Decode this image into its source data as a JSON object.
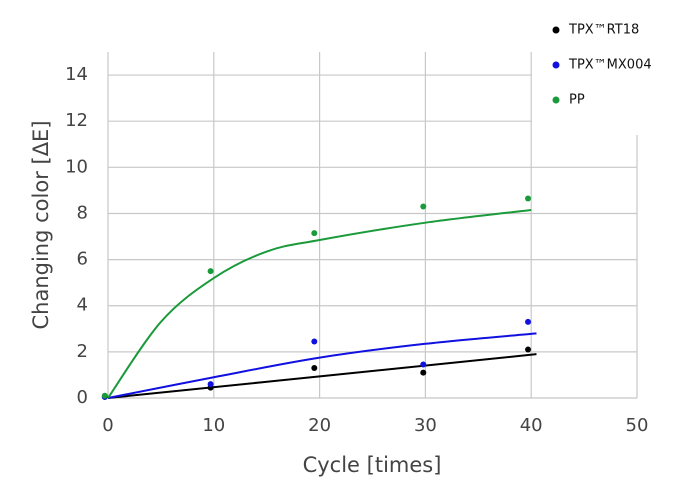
{
  "chart_data": {
    "type": "scatter",
    "x_label": "Cycle [times]",
    "y_label": "Changing color [ΔE]",
    "xlim": [
      0,
      50
    ],
    "xticks": [
      0,
      10,
      20,
      30,
      40,
      50
    ],
    "ylim": [
      0,
      15
    ],
    "yticks": [
      0,
      2,
      4,
      6,
      8,
      10,
      12,
      14
    ],
    "grid": true,
    "legend": "upper right",
    "series": [
      {
        "name": "TPX™RT18",
        "color": "#000000",
        "x": [
          -0.3,
          9.7,
          19.5,
          29.8,
          39.7
        ],
        "values": [
          0.05,
          0.45,
          1.3,
          1.1,
          2.1
        ],
        "trend_x": [
          0,
          40.5
        ],
        "trend_values": [
          0,
          1.9
        ]
      },
      {
        "name": "TPX™MX004",
        "color": "#1010e0",
        "x": [
          -0.3,
          9.7,
          19.5,
          29.8,
          39.7
        ],
        "values": [
          0.05,
          0.6,
          2.45,
          1.45,
          3.3
        ],
        "trend_x": [
          0,
          10,
          20,
          30,
          40.5
        ],
        "trend_values": [
          0,
          0.9,
          1.75,
          2.35,
          2.8
        ]
      },
      {
        "name": "PP",
        "color": "#1a9a3a",
        "x": [
          -0.3,
          9.7,
          19.5,
          29.8,
          39.7
        ],
        "values": [
          0.1,
          5.5,
          7.15,
          8.3,
          8.65
        ],
        "trend_x": [
          0,
          5,
          10,
          15,
          20,
          30,
          40
        ],
        "trend_values": [
          0,
          3.3,
          5.2,
          6.35,
          6.85,
          7.6,
          8.15
        ]
      }
    ]
  }
}
